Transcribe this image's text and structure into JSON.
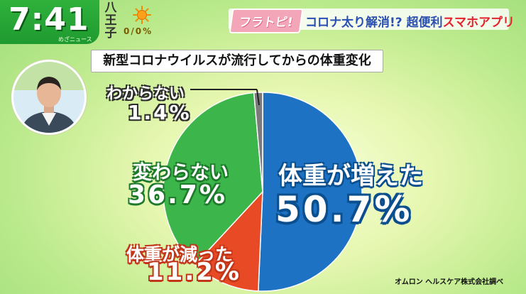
{
  "broadcast": {
    "time": "7:41",
    "brand": "めざニュース",
    "location_chars": [
      "八",
      "王",
      "子"
    ],
    "precipitation": "0/0%"
  },
  "headline": {
    "show_logo": "フラトピ!",
    "text_main": "コロナ太り解消!? 超便利",
    "text_accent": "スマホアプリ"
  },
  "source_note": "オムロン ヘルスケア株式会社調べ",
  "chart_data": {
    "type": "pie",
    "title": "新型コロナウイルスが流行してからの体重変化",
    "slices": [
      {
        "label": "体重が増えた",
        "value": 50.7,
        "value_label": "50.7%",
        "color": "#1d72c4"
      },
      {
        "label": "体重が減った",
        "value": 11.2,
        "value_label": "11.2%",
        "color": "#e84a25"
      },
      {
        "label": "変わらない",
        "value": 36.7,
        "value_label": "36.7%",
        "color": "#3cb54a"
      },
      {
        "label": "わからない",
        "value": 1.4,
        "value_label": "1.4%",
        "color": "#7b7b7b"
      }
    ]
  }
}
